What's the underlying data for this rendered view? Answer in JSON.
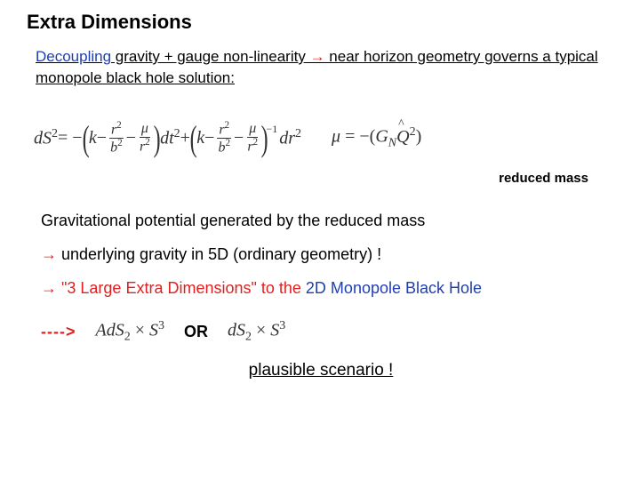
{
  "title": "Extra Dimensions",
  "subtitle": {
    "decoupling": "Decoupling",
    "part1": " gravity + gauge non-linearity ",
    "arrow": "→",
    "part2": " near horizon geometry governs a typical monopole black hole solution:",
    "decoupling_color": "#1f3fb0",
    "arrow_color": "#e02020"
  },
  "equation_main": {
    "lhs": "dS",
    "lhs_sup": "2",
    "eq": " = −",
    "k": "k",
    "minus": " − ",
    "r2": "r",
    "b2": "b",
    "mu": "μ",
    "dt2": "dt",
    "plus": " + ",
    "inv": "−1",
    "dr2": "dr"
  },
  "equation_mu": {
    "mu": "μ",
    "eq": " = −(",
    "G": "G",
    "N": "N",
    "Qhat": "Q",
    "sq": "2",
    "close": ")"
  },
  "reduced_mass_label": "reduced mass",
  "lines": {
    "l1": "Gravitational potential generated by the reduced mass",
    "l2_arrow": "→",
    "l2": " underlying gravity in 5D (ordinary geometry) !",
    "l3_arrow": "→",
    "l3a": " \"3 Large Extra Dimensions\" to the ",
    "l3b": "2D Monopole Black Hole"
  },
  "result_row": {
    "dash_arrow": "---->",
    "ads": "AdS",
    "two": "2",
    "times": " × ",
    "s": "S",
    "three": "3",
    "or": "OR",
    "ds": "dS"
  },
  "plausible": "plausible scenario !",
  "colors": {
    "red": "#e02020",
    "blue": "#1f3fb0",
    "black": "#000000",
    "math": "#333333",
    "background": "#ffffff"
  },
  "fontsizes": {
    "title": 22,
    "subtitle": 17,
    "body": 18,
    "equation": 20,
    "reduced_mass": 15,
    "plausible": 19
  }
}
